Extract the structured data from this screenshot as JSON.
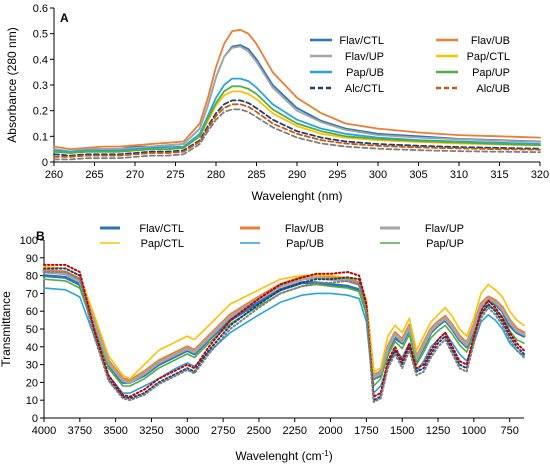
{
  "chart_data": [
    {
      "panel": "A",
      "type": "line",
      "xlabel": "Wavelenght (nm)",
      "ylabel": "Absorbance (280 nm)",
      "xlim": [
        260,
        320
      ],
      "ylim": [
        0,
        0.6
      ],
      "x_ticks": [
        "260",
        "265",
        "270",
        "275",
        "280",
        "285",
        "290",
        "295",
        "300",
        "305",
        "310",
        "315",
        "320"
      ],
      "y_ticks": [
        "0",
        "0.1",
        "0.2",
        "0.3",
        "0.4",
        "0.5",
        "0.6"
      ],
      "grid": false,
      "legend": "top-right",
      "x": [
        260,
        262,
        264,
        266,
        268,
        270,
        272,
        274,
        276,
        278,
        279,
        280,
        281,
        282,
        283,
        284,
        285,
        287,
        290,
        293,
        296,
        300,
        305,
        310,
        315,
        320
      ],
      "series": [
        {
          "name": "Flav/CTL",
          "color": "#2e75b6",
          "dash": "solid",
          "values": [
            0.05,
            0.04,
            0.05,
            0.05,
            0.05,
            0.06,
            0.06,
            0.065,
            0.07,
            0.13,
            0.22,
            0.33,
            0.41,
            0.45,
            0.455,
            0.44,
            0.4,
            0.3,
            0.21,
            0.16,
            0.13,
            0.11,
            0.1,
            0.09,
            0.085,
            0.08
          ]
        },
        {
          "name": "Flav/UB",
          "color": "#ed7d31",
          "dash": "solid",
          "values": [
            0.06,
            0.05,
            0.055,
            0.06,
            0.06,
            0.065,
            0.07,
            0.075,
            0.08,
            0.15,
            0.25,
            0.37,
            0.46,
            0.51,
            0.515,
            0.5,
            0.46,
            0.35,
            0.25,
            0.19,
            0.15,
            0.13,
            0.115,
            0.105,
            0.1,
            0.095
          ]
        },
        {
          "name": "Flav/UP",
          "color": "#a5a5a5",
          "dash": "solid",
          "values": [
            0.05,
            0.04,
            0.05,
            0.05,
            0.05,
            0.055,
            0.06,
            0.065,
            0.07,
            0.13,
            0.22,
            0.33,
            0.41,
            0.445,
            0.45,
            0.43,
            0.39,
            0.29,
            0.2,
            0.155,
            0.125,
            0.105,
            0.095,
            0.088,
            0.083,
            0.078
          ]
        },
        {
          "name": "Pap/CTL",
          "color": "#ffc000",
          "dash": "solid",
          "values": [
            0.04,
            0.035,
            0.04,
            0.04,
            0.04,
            0.045,
            0.05,
            0.05,
            0.055,
            0.1,
            0.16,
            0.22,
            0.26,
            0.275,
            0.275,
            0.265,
            0.245,
            0.19,
            0.14,
            0.11,
            0.095,
            0.085,
            0.078,
            0.072,
            0.068,
            0.065
          ]
        },
        {
          "name": "Pap/UB",
          "color": "#29a3e0",
          "dash": "solid",
          "values": [
            0.045,
            0.04,
            0.045,
            0.045,
            0.045,
            0.05,
            0.055,
            0.058,
            0.06,
            0.11,
            0.18,
            0.25,
            0.3,
            0.325,
            0.325,
            0.315,
            0.29,
            0.225,
            0.165,
            0.13,
            0.11,
            0.095,
            0.085,
            0.08,
            0.075,
            0.07
          ]
        },
        {
          "name": "Pap/UP",
          "color": "#4faf45",
          "dash": "solid",
          "values": [
            0.04,
            0.035,
            0.04,
            0.04,
            0.04,
            0.045,
            0.05,
            0.05,
            0.055,
            0.1,
            0.17,
            0.23,
            0.275,
            0.295,
            0.295,
            0.285,
            0.265,
            0.205,
            0.15,
            0.12,
            0.1,
            0.09,
            0.082,
            0.076,
            0.07,
            0.066
          ]
        },
        {
          "name": "Alc/CTL",
          "color": "#1f3f72",
          "dash": "dashed",
          "values": [
            0.03,
            0.025,
            0.03,
            0.03,
            0.03,
            0.035,
            0.04,
            0.04,
            0.045,
            0.085,
            0.14,
            0.19,
            0.225,
            0.24,
            0.24,
            0.23,
            0.21,
            0.165,
            0.12,
            0.095,
            0.08,
            0.07,
            0.063,
            0.058,
            0.055,
            0.052
          ]
        },
        {
          "name": "Alc/UB",
          "color": "#c55a11",
          "dash": "dashed",
          "values": [
            0.02,
            0.02,
            0.025,
            0.025,
            0.025,
            0.03,
            0.035,
            0.035,
            0.04,
            0.08,
            0.13,
            0.18,
            0.21,
            0.225,
            0.225,
            0.215,
            0.195,
            0.15,
            0.11,
            0.085,
            0.072,
            0.063,
            0.057,
            0.053,
            0.05,
            0.048
          ]
        },
        {
          "name": "",
          "color": "#7f7f7f",
          "dash": "dashed",
          "values": [
            0.01,
            0.01,
            0.015,
            0.015,
            0.015,
            0.02,
            0.025,
            0.025,
            0.03,
            0.07,
            0.12,
            0.165,
            0.195,
            0.205,
            0.205,
            0.195,
            0.175,
            0.135,
            0.095,
            0.072,
            0.06,
            0.052,
            0.046,
            0.042,
            0.04,
            0.038
          ]
        }
      ]
    },
    {
      "panel": "B",
      "type": "line",
      "xlabel": "Wavelenght (cm",
      "xlabel_sup": "-1",
      "xlabel_suffix": ")",
      "ylabel": "Transmittance",
      "xlim": [
        4000,
        650
      ],
      "ylim": [
        0,
        100
      ],
      "x_ticks": [
        "4000",
        "3750",
        "3500",
        "3250",
        "3000",
        "2750",
        "2500",
        "2250",
        "2000",
        "1750",
        "1500",
        "1250",
        "1000",
        "750"
      ],
      "y_ticks": [
        "0",
        "10",
        "20",
        "30",
        "40",
        "50",
        "60",
        "70",
        "80",
        "90",
        "100"
      ],
      "grid": false,
      "legend": "top-center",
      "x": [
        4000,
        3850,
        3750,
        3650,
        3550,
        3450,
        3400,
        3300,
        3200,
        3100,
        3000,
        2950,
        2850,
        2700,
        2500,
        2350,
        2200,
        2100,
        2000,
        1880,
        1800,
        1750,
        1700,
        1650,
        1600,
        1550,
        1500,
        1450,
        1400,
        1350,
        1300,
        1250,
        1200,
        1150,
        1100,
        1050,
        1000,
        950,
        900,
        850,
        800,
        750,
        700,
        650
      ],
      "series": [
        {
          "name": "Flav/CTL",
          "color": "#2e75b6",
          "dash": "solid",
          "width": 3,
          "values": [
            80,
            79,
            75,
            52,
            30,
            20,
            20,
            24,
            30,
            34,
            38,
            36,
            44,
            55,
            65,
            72,
            76,
            76,
            75,
            74,
            72,
            60,
            22,
            24,
            38,
            45,
            42,
            50,
            32,
            40,
            48,
            52,
            55,
            50,
            44,
            40,
            50,
            62,
            66,
            64,
            60,
            52,
            48,
            46
          ]
        },
        {
          "name": "Flav/UB",
          "color": "#ed7d31",
          "dash": "solid",
          "width": 3,
          "values": [
            83,
            82,
            78,
            55,
            32,
            22,
            21,
            26,
            32,
            36,
            40,
            38,
            46,
            58,
            68,
            75,
            79,
            80,
            79,
            78,
            76,
            62,
            24,
            26,
            40,
            48,
            44,
            52,
            34,
            42,
            50,
            54,
            57,
            52,
            46,
            42,
            52,
            64,
            68,
            66,
            62,
            55,
            50,
            48
          ]
        },
        {
          "name": "Flav/UP",
          "color": "#a5a5a5",
          "dash": "solid",
          "width": 3,
          "values": [
            82,
            81,
            77,
            54,
            31,
            21,
            20,
            25,
            31,
            35,
            39,
            37,
            45,
            57,
            67,
            74,
            78,
            79,
            78,
            77,
            75,
            61,
            23,
            25,
            39,
            47,
            43,
            51,
            33,
            41,
            49,
            53,
            56,
            51,
            45,
            41,
            51,
            63,
            67,
            65,
            61,
            54,
            49,
            47
          ]
        },
        {
          "name": "Pap/CTL",
          "color": "#ffc000",
          "dash": "solid",
          "width": 1.6,
          "values": [
            85,
            84,
            80,
            58,
            35,
            24,
            22,
            30,
            38,
            42,
            46,
            44,
            52,
            64,
            72,
            78,
            80,
            80,
            80,
            79,
            78,
            66,
            26,
            28,
            46,
            52,
            48,
            56,
            38,
            46,
            54,
            58,
            62,
            57,
            50,
            46,
            56,
            70,
            75,
            72,
            68,
            60,
            55,
            52
          ]
        },
        {
          "name": "Pap/UB",
          "color": "#29a3e0",
          "dash": "solid",
          "width": 1.6,
          "values": [
            73,
            72,
            68,
            46,
            24,
            14,
            14,
            18,
            22,
            27,
            31,
            29,
            37,
            48,
            58,
            65,
            69,
            70,
            70,
            69,
            67,
            54,
            14,
            18,
            30,
            38,
            34,
            42,
            26,
            32,
            40,
            44,
            48,
            42,
            36,
            32,
            42,
            54,
            58,
            55,
            50,
            42,
            38,
            35
          ]
        },
        {
          "name": "Pap/UP",
          "color": "#4faf45",
          "dash": "solid",
          "width": 1.6,
          "values": [
            78,
            77,
            73,
            50,
            28,
            18,
            18,
            22,
            28,
            32,
            36,
            34,
            42,
            53,
            63,
            70,
            74,
            75,
            74,
            73,
            71,
            58,
            18,
            22,
            35,
            43,
            39,
            47,
            30,
            37,
            45,
            49,
            52,
            47,
            41,
            37,
            47,
            59,
            63,
            61,
            57,
            49,
            44,
            42
          ]
        },
        {
          "name": "",
          "color": "#1f3f72",
          "dash": "dotted",
          "width": 2,
          "values": [
            84,
            84,
            80,
            48,
            22,
            12,
            11,
            14,
            20,
            24,
            28,
            26,
            38,
            52,
            64,
            72,
            76,
            78,
            78,
            79,
            78,
            62,
            10,
            12,
            30,
            38,
            30,
            40,
            26,
            28,
            36,
            42,
            46,
            38,
            30,
            28,
            44,
            58,
            64,
            60,
            54,
            46,
            40,
            36
          ]
        },
        {
          "name": "",
          "color": "#c00000",
          "dash": "dotted",
          "width": 2,
          "values": [
            86,
            86,
            82,
            50,
            24,
            13,
            12,
            16,
            22,
            26,
            30,
            28,
            40,
            55,
            67,
            75,
            79,
            81,
            81,
            82,
            80,
            64,
            12,
            14,
            32,
            40,
            32,
            42,
            28,
            30,
            38,
            44,
            48,
            40,
            32,
            30,
            46,
            60,
            66,
            62,
            56,
            48,
            42,
            38
          ]
        },
        {
          "name": "",
          "color": "#7f7f7f",
          "dash": "dotted",
          "width": 2,
          "values": [
            82,
            82,
            78,
            46,
            21,
            11,
            10,
            13,
            19,
            23,
            27,
            25,
            36,
            50,
            62,
            70,
            74,
            76,
            76,
            77,
            75,
            60,
            9,
            11,
            28,
            36,
            28,
            38,
            24,
            26,
            34,
            40,
            44,
            36,
            28,
            26,
            42,
            56,
            62,
            58,
            52,
            44,
            38,
            34
          ]
        }
      ]
    }
  ]
}
